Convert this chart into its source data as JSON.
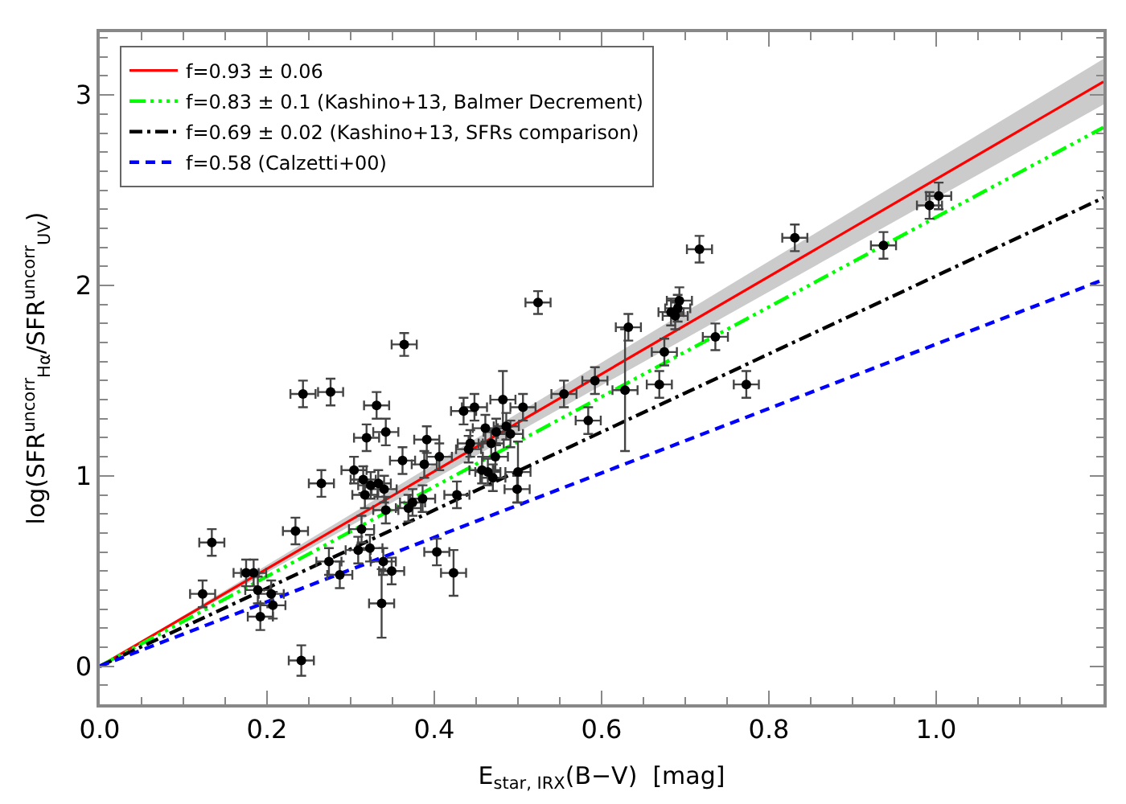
{
  "chart_data": {
    "type": "scatter",
    "xlabel": "E$_{star, IRX}$(B−V)  [mag]",
    "ylabel": "log(SFR$^{uncorr}$$_{Hα}$/SFR$^{uncorr}$$_{UV}$)",
    "xlim": [
      0,
      1.2
    ],
    "ylim": [
      -0.2,
      3.33
    ],
    "xticks": [
      {
        "value": 0,
        "label": "0.0"
      },
      {
        "value": 0.2,
        "label": "0.2"
      },
      {
        "value": 0.4,
        "label": "0.4"
      },
      {
        "value": 0.6,
        "label": "0.6"
      },
      {
        "value": 0.8,
        "label": "0.8"
      },
      {
        "value": 1.0,
        "label": "1.0"
      }
    ],
    "yticks": [
      0,
      1,
      2,
      3
    ],
    "legend": "top left",
    "series": [
      {
        "type": "line",
        "name": "f=0.93 ± 0.06",
        "color": "#ff0000",
        "line_style": "solid",
        "marker": "none",
        "x": [
          0,
          1.2
        ],
        "values": [
          0,
          3.07
        ],
        "lower": [
          0,
          2.95
        ],
        "upper": [
          0,
          3.19
        ]
      },
      {
        "type": "line",
        "name": "f=0.83 ± 0.1 (Kashino+13, Balmer Decrement)",
        "color": "#00ff00",
        "line_style": "dashdotdot",
        "marker": "none",
        "x": [
          0,
          1.2
        ],
        "values": [
          0,
          2.83
        ]
      },
      {
        "type": "line",
        "name": "f=0.69 ± 0.02 (Kashino+13, SFRs comparison)",
        "color": "#000000",
        "line_style": "dashdot",
        "marker": "none",
        "x": [
          0,
          1.2
        ],
        "values": [
          0,
          2.46
        ]
      },
      {
        "type": "line",
        "name": "f=0.58 (Calzetti+00)",
        "color": "#0000ff",
        "line_style": "dashed",
        "marker": "none",
        "x": [
          0,
          1.2
        ],
        "values": [
          0,
          2.03
        ]
      },
      {
        "color": "#000000",
        "marker": "circle",
        "x": [
          0.243,
          0.276,
          0.331,
          0.319,
          0.342,
          0.265,
          0.134,
          0.123,
          0.175,
          0.184,
          0.189,
          0.205,
          0.207,
          0.192,
          0.241,
          0.234,
          0.274,
          0.287,
          0.309,
          0.323,
          0.313,
          0.339,
          0.349,
          0.337,
          0.403,
          0.423,
          0.427,
          0.304,
          0.315,
          0.317,
          0.324,
          0.333,
          0.34,
          0.362,
          0.391,
          0.388,
          0.406,
          0.386,
          0.369,
          0.435,
          0.448,
          0.443,
          0.342,
          0.524,
          0.364,
          0.632,
          0.628,
          0.592,
          0.555,
          0.584,
          0.506,
          0.482,
          0.461,
          0.474,
          0.491,
          0.486,
          0.441,
          0.468,
          0.473,
          0.457,
          0.464,
          0.47,
          0.5,
          0.499,
          0.374,
          0.717,
          0.831,
          0.937,
          0.992,
          1.003,
          0.693,
          0.688,
          0.691,
          0.683,
          0.736,
          0.675,
          0.669,
          0.773
        ],
        "values": [
          1.43,
          1.44,
          1.37,
          1.2,
          1.23,
          0.96,
          0.65,
          0.38,
          0.49,
          0.49,
          0.4,
          0.38,
          0.32,
          0.26,
          0.03,
          0.71,
          0.55,
          0.48,
          0.61,
          0.62,
          0.72,
          0.55,
          0.5,
          0.33,
          0.6,
          0.49,
          0.9,
          1.03,
          0.98,
          0.9,
          0.95,
          0.96,
          0.93,
          1.08,
          1.19,
          1.06,
          1.1,
          0.88,
          0.83,
          1.34,
          1.36,
          1.17,
          0.82,
          1.91,
          1.69,
          1.78,
          1.45,
          1.5,
          1.43,
          1.29,
          1.36,
          1.4,
          1.25,
          1.23,
          1.22,
          1.26,
          1.14,
          1.17,
          1.1,
          1.03,
          1.02,
          0.99,
          1.02,
          0.93,
          0.86,
          2.19,
          2.25,
          2.21,
          2.42,
          2.47,
          1.92,
          1.84,
          1.88,
          1.86,
          1.73,
          1.65,
          1.48,
          1.48
        ],
        "errors": [
          0.07,
          0.07,
          0.07,
          0.07,
          0.07,
          0.07,
          0.07,
          0.07,
          0.07,
          0.07,
          0.07,
          0.07,
          0.07,
          0.07,
          0.08,
          0.07,
          0.07,
          0.07,
          0.07,
          0.07,
          0.07,
          0.07,
          0.07,
          0.18,
          0.07,
          0.12,
          0.07,
          0.07,
          0.07,
          0.07,
          0.07,
          0.07,
          0.07,
          0.07,
          0.07,
          0.07,
          0.07,
          0.07,
          0.07,
          0.07,
          0.07,
          0.07,
          0.07,
          0.06,
          0.06,
          0.07,
          0.32,
          0.07,
          0.07,
          0.07,
          0.07,
          0.15,
          0.07,
          0.07,
          0.07,
          0.07,
          0.07,
          0.07,
          0.07,
          0.07,
          0.07,
          0.07,
          0.16,
          0.07,
          0.07,
          0.07,
          0.07,
          0.07,
          0.07,
          0.07,
          0.07,
          0.07,
          0.07,
          0.07,
          0.07,
          0.07,
          0.07,
          0.07
        ],
        "xerrors": [
          0.015,
          0.015,
          0.015,
          0.015,
          0.015,
          0.015,
          0.015,
          0.015,
          0.015,
          0.015,
          0.015,
          0.015,
          0.015,
          0.015,
          0.015,
          0.015,
          0.015,
          0.015,
          0.015,
          0.015,
          0.015,
          0.015,
          0.015,
          0.015,
          0.015,
          0.015,
          0.015,
          0.015,
          0.015,
          0.015,
          0.015,
          0.015,
          0.015,
          0.015,
          0.015,
          0.015,
          0.015,
          0.015,
          0.015,
          0.015,
          0.015,
          0.015,
          0.015,
          0.015,
          0.015,
          0.015,
          0.015,
          0.015,
          0.015,
          0.015,
          0.015,
          0.015,
          0.015,
          0.015,
          0.015,
          0.015,
          0.015,
          0.015,
          0.015,
          0.015,
          0.015,
          0.015,
          0.015,
          0.015,
          0.015,
          0.015,
          0.015,
          0.015,
          0.015,
          0.015,
          0.015,
          0.015,
          0.015,
          0.015,
          0.015,
          0.015,
          0.015,
          0.015
        ]
      }
    ]
  }
}
